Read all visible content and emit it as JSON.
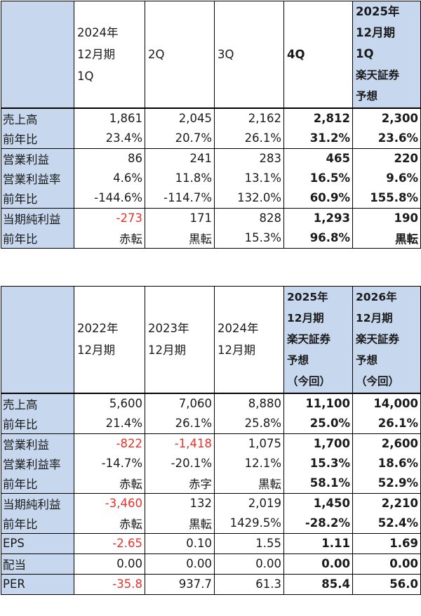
{
  "table1": {
    "headers": [
      [],
      [
        "2024年",
        "12月期",
        "1Q"
      ],
      [
        "2Q"
      ],
      [
        "3Q"
      ],
      [
        "4Q"
      ],
      [
        "2025年",
        "12月期",
        "1Q",
        "楽天証券",
        "予想"
      ]
    ],
    "rows": [
      {
        "label": "売上高",
        "cells": [
          "1,861",
          "2,045",
          "2,162",
          "2,812",
          "2,300"
        ]
      },
      {
        "label": "前年比",
        "cells": [
          "23.4%",
          "20.7%",
          "26.1%",
          "31.2%",
          "23.6%"
        ]
      },
      {
        "label": "営業利益",
        "cells": [
          "86",
          "241",
          "283",
          "465",
          "220"
        ]
      },
      {
        "label": "営業利益率",
        "cells": [
          "4.6%",
          "11.8%",
          "13.1%",
          "16.5%",
          "9.6%"
        ]
      },
      {
        "label": "前年比",
        "cells": [
          "-144.6%",
          "-114.7%",
          "132.0%",
          "60.9%",
          "155.8%"
        ]
      },
      {
        "label": "当期純利益",
        "cells": [
          "-273",
          "171",
          "828",
          "1,293",
          "190"
        ]
      },
      {
        "label": "前年比",
        "cells": [
          "赤転",
          "黒転",
          "15.3%",
          "96.8%",
          "黒転"
        ]
      }
    ]
  },
  "table2": {
    "headers": [
      [],
      [
        "2022年",
        "12月期"
      ],
      [
        "2023年",
        "12月期"
      ],
      [
        "2024年",
        "12月期"
      ],
      [
        "2025年",
        "12月期",
        "楽天証券",
        "予想",
        "（今回）"
      ],
      [
        "2026年",
        "12月期",
        "楽天証券",
        "予想",
        "（今回）"
      ]
    ],
    "rows": [
      {
        "label": "売上高",
        "cells": [
          "5,600",
          "7,060",
          "8,880",
          "11,100",
          "14,000"
        ]
      },
      {
        "label": "前年比",
        "cells": [
          "21.4%",
          "26.1%",
          "25.8%",
          "25.0%",
          "26.1%"
        ]
      },
      {
        "label": "営業利益",
        "cells": [
          "-822",
          "-1,418",
          "1,075",
          "1,700",
          "2,600"
        ]
      },
      {
        "label": "営業利益率",
        "cells": [
          "-14.7%",
          "-20.1%",
          "12.1%",
          "15.3%",
          "18.6%"
        ]
      },
      {
        "label": "前年比",
        "cells": [
          "赤転",
          "赤字",
          "黒転",
          "58.1%",
          "52.9%"
        ]
      },
      {
        "label": "当期純利益",
        "cells": [
          "-3,460",
          "132",
          "2,019",
          "1,450",
          "2,210"
        ]
      },
      {
        "label": "前年比",
        "cells": [
          "赤転",
          "黒転",
          "1429.5%",
          "-28.2%",
          "52.4%"
        ]
      },
      {
        "label": "EPS",
        "cells": [
          "-2.65",
          "0.10",
          "1.55",
          "1.11",
          "1.69"
        ]
      },
      {
        "label": "配当",
        "cells": [
          "0.00",
          "0.00",
          "0.00",
          "0.00",
          "0.00"
        ]
      },
      {
        "label": "PER",
        "cells": [
          "-35.8",
          "937.7",
          "61.3",
          "85.4",
          "56.0"
        ]
      }
    ]
  },
  "colors": {
    "header_fill": "#c7d8ee",
    "negative": "#e8322a"
  }
}
